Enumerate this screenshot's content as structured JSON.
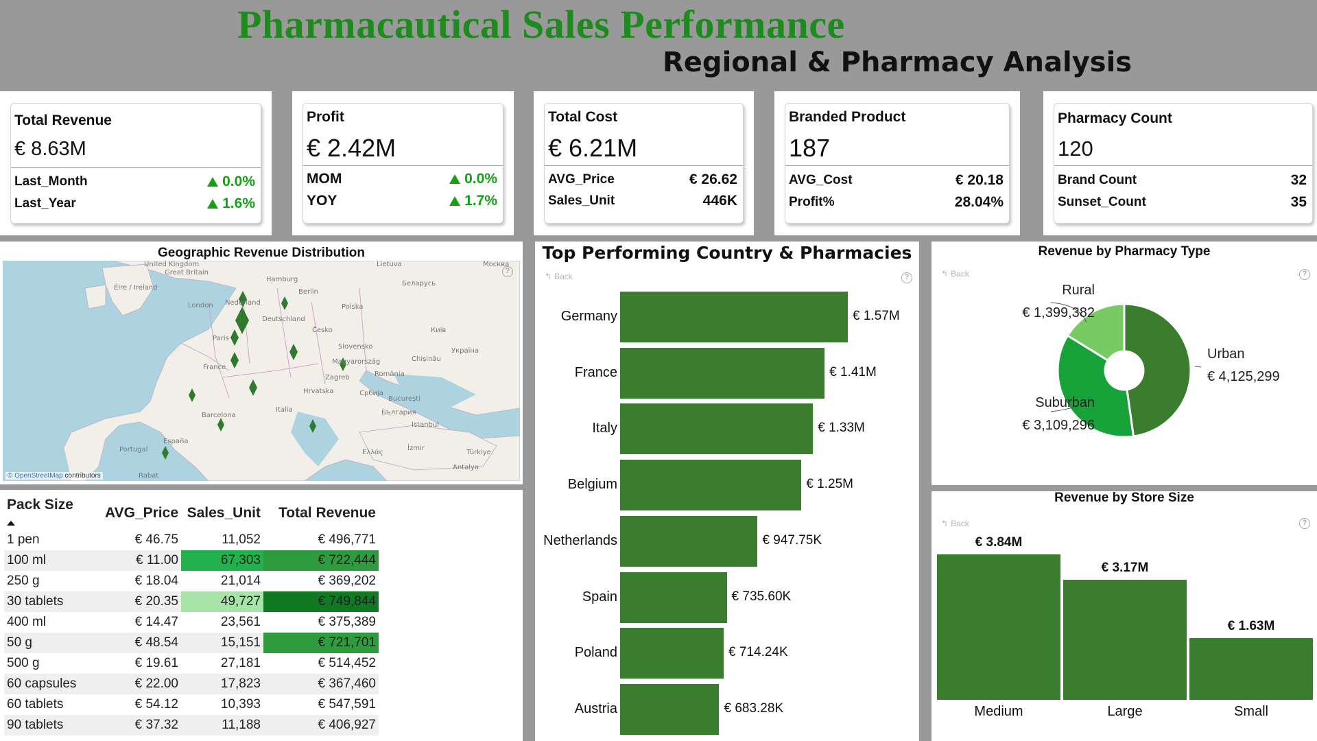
{
  "header": {
    "title": "Pharmacautical Sales Performance",
    "subtitle": "Regional & Pharmacy Analysis"
  },
  "kpis": {
    "revenue": {
      "title": "Total Revenue",
      "value": "€ 8.63M",
      "rows": [
        {
          "label": "Last_Month",
          "value": "0.0%",
          "trend": "up"
        },
        {
          "label": "Last_Year",
          "value": "1.6%",
          "trend": "up"
        }
      ]
    },
    "profit": {
      "title": "Profit",
      "value": "€ 2.42M",
      "rows": [
        {
          "label": "MOM",
          "value": "0.0%",
          "trend": "up"
        },
        {
          "label": "YOY",
          "value": "1.7%",
          "trend": "up"
        }
      ]
    },
    "cost": {
      "title": "Total Cost",
      "value": "€ 6.21M",
      "rows": [
        {
          "label": "AVG_Price",
          "value": "€ 26.62"
        },
        {
          "label": "Sales_Unit",
          "value": "446K"
        }
      ]
    },
    "branded": {
      "title": "Branded Product",
      "value": "187",
      "rows": [
        {
          "label": "AVG_Cost",
          "value": "€ 20.18"
        },
        {
          "label": "Profit%",
          "value": "28.04%"
        }
      ]
    },
    "pharmacy": {
      "title": "Pharmacy Count",
      "value": "120",
      "rows": [
        {
          "label": "Brand Count",
          "value": "32"
        },
        {
          "label": "Sunset_Count",
          "value": "35"
        }
      ]
    }
  },
  "map": {
    "title": "Geographic Revenue Distribution",
    "attribution_brand": "© OpenStreetMap",
    "attribution_suffix": "contributors",
    "labels": [
      "United Kingdom",
      "Great Britain",
      "Éire / Ireland",
      "London",
      "Nederland",
      "Hamburg",
      "Berlin",
      "Polska",
      "Lietuva",
      "Беларусь",
      "Москва",
      "Deutschland",
      "Paris",
      "France",
      "Česko",
      "Київ",
      "Україна",
      "Slovensko",
      "Magyarország",
      "Chișinău",
      "România",
      "Hrvatska",
      "Zagreb",
      "Србија",
      "București",
      "България",
      "Italia",
      "Istanbul",
      "Barcelona",
      "España",
      "Portugal",
      "Ελλάς",
      "İzmir",
      "Türkiye",
      "Antalya",
      "Rabat"
    ]
  },
  "pack_table": {
    "columns": [
      "Pack Size",
      "AVG_Price",
      "Sales_Unit",
      "Total Revenue"
    ],
    "rows": [
      [
        "1 pen",
        "€ 46.75",
        "11,052",
        "€ 496,771"
      ],
      [
        "100 ml",
        "€ 11.00",
        "67,303",
        "€ 722,444"
      ],
      [
        "250 g",
        "€ 18.04",
        "21,014",
        "€ 369,202"
      ],
      [
        "30 tablets",
        "€ 20.35",
        "49,727",
        "€ 749,844"
      ],
      [
        "400 ml",
        "€ 14.47",
        "23,561",
        "€ 375,389"
      ],
      [
        "50 g",
        "€ 48.54",
        "15,151",
        "€ 721,701"
      ],
      [
        "500 g",
        "€ 19.61",
        "27,181",
        "€ 514,452"
      ],
      [
        "60 capsules",
        "€ 22.00",
        "17,823",
        "€ 367,460"
      ],
      [
        "60 tablets",
        "€ 54.12",
        "10,393",
        "€ 547,591"
      ],
      [
        "90 tablets",
        "€ 37.32",
        "11,188",
        "€ 406,927"
      ]
    ],
    "highlights": {
      "1-2": "#22b14c",
      "1-3": "#2e9b3e",
      "3-2": "#a8e4a8",
      "3-3": "#0f7a22",
      "5-3": "#2e9b3e"
    }
  },
  "common": {
    "back_label": "Back",
    "help_glyph": "?"
  },
  "colors": {
    "bar": "#3b7d2e",
    "title_green": "#1e8b1e",
    "kpi_up": "#16a016"
  },
  "chart_data": [
    {
      "type": "bar",
      "orientation": "horizontal",
      "title": "Top Performing Country & Pharmacies",
      "categories": [
        "Germany",
        "France",
        "Italy",
        "Belgium",
        "Netherlands",
        "Spain",
        "Poland",
        "Austria"
      ],
      "values": [
        1570000,
        1410000,
        1330000,
        1250000,
        947750,
        735600,
        714240,
        683280
      ],
      "value_labels": [
        "€ 1.57M",
        "€ 1.41M",
        "€ 1.33M",
        "€ 1.25M",
        "€ 947.75K",
        "€ 735.60K",
        "€ 714.24K",
        "€ 683.28K"
      ]
    },
    {
      "type": "pie",
      "donut": true,
      "title": "Revenue by Pharmacy Type",
      "categories": [
        "Urban",
        "Suburban",
        "Rural"
      ],
      "values": [
        4125299,
        3109296,
        1399382
      ],
      "value_labels": [
        "€ 4,125,299",
        "€ 3,109,296",
        "€ 1,399,382"
      ],
      "colors": [
        "#3b7d2e",
        "#17a33a",
        "#76cc62"
      ]
    },
    {
      "type": "bar",
      "orientation": "vertical",
      "title": "Revenue by Store Size",
      "categories": [
        "Medium",
        "Large",
        "Small"
      ],
      "values": [
        3840000,
        3170000,
        1630000
      ],
      "value_labels": [
        "€ 3.84M",
        "€ 3.17M",
        "€ 1.63M"
      ]
    }
  ]
}
